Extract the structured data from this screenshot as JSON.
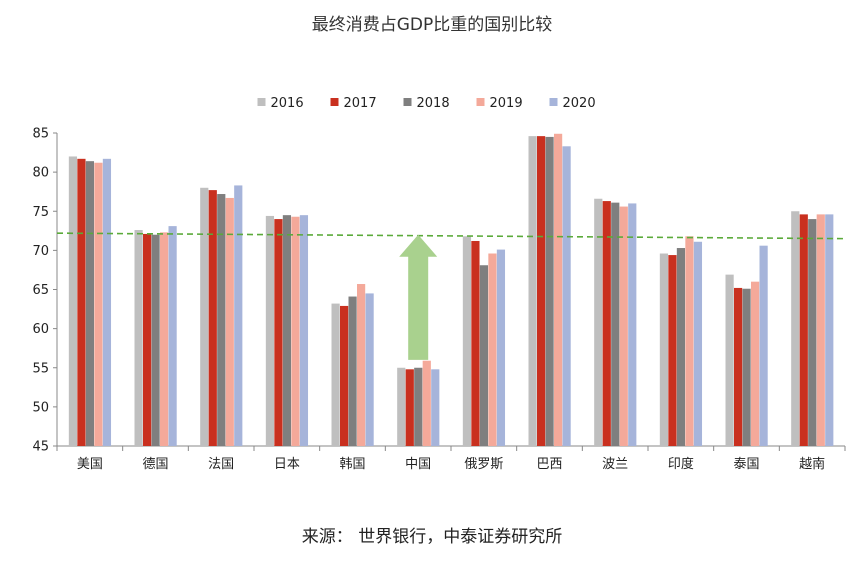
{
  "chart_data": {
    "type": "bar",
    "title": "最终消费占GDP比重的国别比较",
    "source": "来源： 世界银行，中泰证券研究所",
    "categories": [
      "美国",
      "德国",
      "法国",
      "日本",
      "韩国",
      "中国",
      "俄罗斯",
      "巴西",
      "波兰",
      "印度",
      "泰国",
      "越南"
    ],
    "series": [
      {
        "name": "2016",
        "color": "#BFBFBF",
        "values": [
          82.0,
          72.6,
          78.0,
          74.4,
          63.2,
          55.0,
          71.8,
          84.6,
          76.6,
          69.6,
          66.9,
          75.0
        ]
      },
      {
        "name": "2017",
        "color": "#C9301F",
        "values": [
          81.7,
          72.1,
          77.7,
          74.0,
          62.9,
          54.8,
          71.2,
          84.6,
          76.3,
          69.4,
          65.2,
          74.6
        ]
      },
      {
        "name": "2018",
        "color": "#7F7F7F",
        "values": [
          81.4,
          72.0,
          77.2,
          74.5,
          64.1,
          55.0,
          68.1,
          84.5,
          76.1,
          70.3,
          65.1,
          74.0
        ]
      },
      {
        "name": "2019",
        "color": "#F4A99A",
        "values": [
          81.2,
          72.3,
          76.7,
          74.3,
          65.7,
          55.9,
          69.6,
          84.9,
          75.6,
          71.8,
          66.0,
          74.6
        ]
      },
      {
        "name": "2020",
        "color": "#A6B4DA",
        "values": [
          81.7,
          73.1,
          78.3,
          74.5,
          64.5,
          54.8,
          70.1,
          83.3,
          76.0,
          71.1,
          70.6,
          74.6
        ]
      }
    ],
    "ylim": [
      45,
      85
    ],
    "yticks": [
      45,
      50,
      55,
      60,
      65,
      70,
      75,
      80,
      85
    ],
    "ytick_labels": [
      "45",
      "50",
      "55",
      "60",
      "65",
      "70",
      "75",
      "80",
      "85"
    ],
    "legend_position": "top-center",
    "grid": false,
    "reference_line": {
      "style": "dashed",
      "color": "#5BAA3A",
      "start_value": 72.2,
      "end_value": 71.5
    },
    "annotation": {
      "type": "up-arrow",
      "color": "#A9D18E",
      "category": "中国",
      "from_value": 56.0,
      "to_value": 72.0
    },
    "xlabel": "",
    "ylabel": ""
  }
}
